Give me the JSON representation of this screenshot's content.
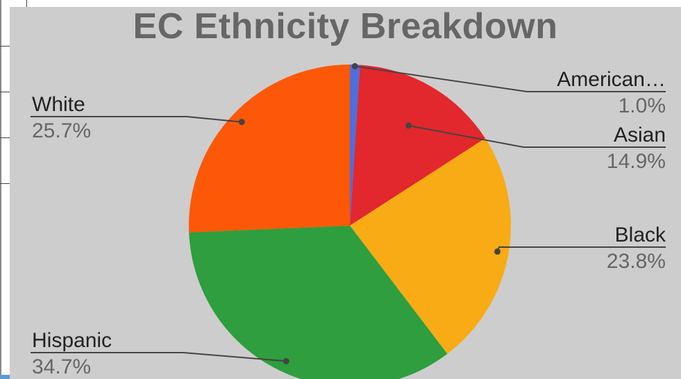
{
  "chart_data": {
    "type": "pie",
    "title": "EC Ethnicity Breakdown",
    "slices": [
      {
        "label": "American…",
        "value": 1.0,
        "value_label": "1.0%",
        "color": "#4e6fdc"
      },
      {
        "label": "Asian",
        "value": 14.9,
        "value_label": "14.9%",
        "color": "#e2272d"
      },
      {
        "label": "Black",
        "value": 23.8,
        "value_label": "23.8%",
        "color": "#f8ab14"
      },
      {
        "label": "Hispanic",
        "value": 34.7,
        "value_label": "34.7%",
        "color": "#2e9e3e"
      },
      {
        "label": "White",
        "value": 25.7,
        "value_label": "25.7%",
        "color": "#fc5808"
      }
    ],
    "start_angle": "top",
    "direction": "clockwise",
    "legend": "none",
    "data_labels": "outside-with-leader-lines"
  },
  "colors": {
    "background": "#cdcdcd",
    "title": "#666666",
    "label_name": "#222222",
    "label_value": "#666666",
    "leader_line": "#444444"
  }
}
